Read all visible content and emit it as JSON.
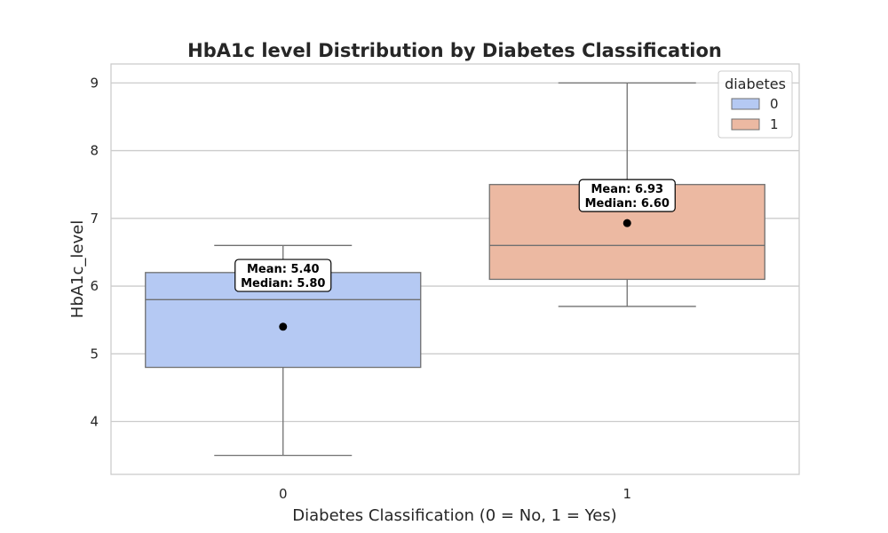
{
  "chart_data": {
    "type": "box",
    "title": "HbA1c level Distribution by Diabetes Classification",
    "xlabel": "Diabetes Classification (0 = No, 1 = Yes)",
    "ylabel": "HbA1c_level",
    "categories": [
      "0",
      "1"
    ],
    "ylim": [
      3.22,
      9.28
    ],
    "yticks": [
      4,
      5,
      6,
      7,
      8,
      9
    ],
    "grid": true,
    "legend": {
      "title": "diabetes",
      "placement": "top-right",
      "entries": [
        {
          "label": "0",
          "color": "#b5c9f3"
        },
        {
          "label": "1",
          "color": "#ecb9a2"
        }
      ]
    },
    "series": [
      {
        "category": "0",
        "whisker_low": 3.5,
        "q1": 4.8,
        "median": 5.8,
        "q3": 6.2,
        "whisker_high": 6.6,
        "mean": 5.4,
        "annotation": [
          "Mean: 5.40",
          "Median: 5.80"
        ],
        "color": "#b5c9f3"
      },
      {
        "category": "1",
        "whisker_low": 5.7,
        "q1": 6.1,
        "median": 6.6,
        "q3": 7.5,
        "whisker_high": 9.0,
        "mean": 6.93,
        "annotation": [
          "Mean: 6.93",
          "Median: 6.60"
        ],
        "color": "#ecb9a2"
      }
    ],
    "colors": {
      "grid": "#cccccc",
      "box_edge": "#707070",
      "axes_frame": "#cccccc",
      "mean_marker": "#000000"
    }
  }
}
